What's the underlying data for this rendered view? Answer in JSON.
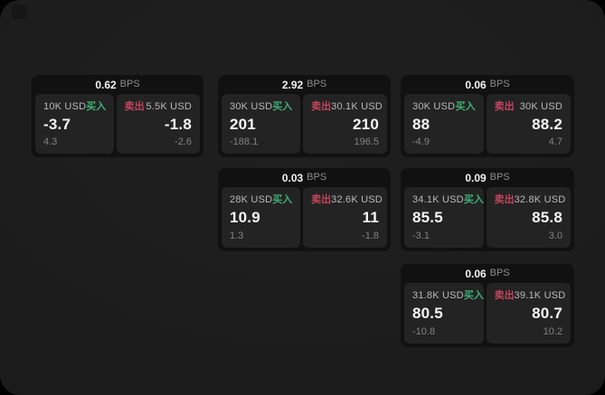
{
  "labels": {
    "bps": "BPS",
    "buy": "买入",
    "sell": "卖出"
  },
  "colors": {
    "surface": "#1d1d1d",
    "card_bg": "#111111",
    "panel_bg": "#232323",
    "buy_green": "#3fae73",
    "sell_red": "#c2455e"
  },
  "cards": [
    {
      "bps": "0.62",
      "buy": {
        "amount": "10K USD",
        "value": "-3.7",
        "sub": "4.3"
      },
      "sell": {
        "amount": "5.5K USD",
        "value": "-1.8",
        "sub": "-2.6"
      }
    },
    {
      "bps": "2.92",
      "buy": {
        "amount": "30K USD",
        "value": "201",
        "sub": "-188.1"
      },
      "sell": {
        "amount": "30.1K USD",
        "value": "210",
        "sub": "196.5"
      }
    },
    {
      "bps": "0.06",
      "buy": {
        "amount": "30K USD",
        "value": "88",
        "sub": "-4.9"
      },
      "sell": {
        "amount": "30K USD",
        "value": "88.2",
        "sub": "4.7"
      }
    },
    {
      "bps": "0.03",
      "buy": {
        "amount": "28K USD",
        "value": "10.9",
        "sub": "1.3"
      },
      "sell": {
        "amount": "32.6K USD",
        "value": "11",
        "sub": "-1.8"
      }
    },
    {
      "bps": "0.09",
      "buy": {
        "amount": "34.1K USD",
        "value": "85.5",
        "sub": "-3.1"
      },
      "sell": {
        "amount": "32.8K USD",
        "value": "85.8",
        "sub": "3.0"
      }
    },
    {
      "bps": "0.06",
      "buy": {
        "amount": "31.8K USD",
        "value": "80.5",
        "sub": "-10.8"
      },
      "sell": {
        "amount": "39.1K USD",
        "value": "80.7",
        "sub": "10.2"
      }
    }
  ]
}
